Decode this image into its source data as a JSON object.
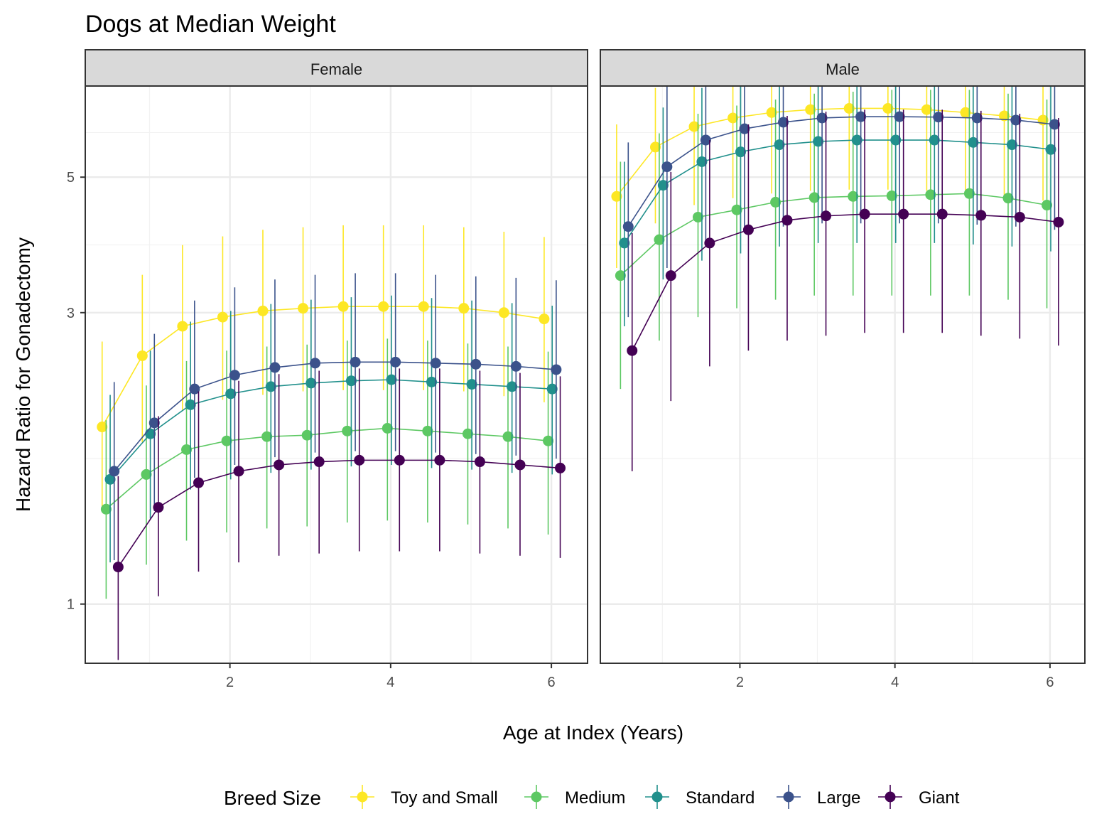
{
  "chart_data": {
    "type": "line",
    "title": "Dogs at Median Weight",
    "xlabel": "Age at Index (Years)",
    "ylabel": "Hazard Ratio for Gonadectomy",
    "y_scale": "log",
    "xlim": [
      0.2,
      6.45
    ],
    "ylim": [
      0.8,
      7.05
    ],
    "x_ticks": [
      2,
      4,
      6
    ],
    "y_ticks": [
      1,
      3,
      5
    ],
    "grid": true,
    "legend": {
      "title": "Breed Size",
      "position": "bottom"
    },
    "panels": [
      {
        "label": "Female",
        "series": [
          {
            "name": "Toy and Small",
            "color": "#FDE725",
            "x": [
              0.41,
              0.91,
              1.41,
              1.91,
              2.41,
              2.91,
              3.41,
              3.91,
              4.41,
              4.91,
              5.41,
              5.91
            ],
            "y": [
              1.95,
              2.55,
              2.85,
              2.95,
              3.02,
              3.05,
              3.07,
              3.07,
              3.07,
              3.05,
              3.0,
              2.93
            ],
            "lower": [
              1.43,
              1.84,
              2.08,
              2.16,
              2.2,
              2.23,
              2.24,
              2.24,
              2.24,
              2.23,
              2.19,
              2.14
            ],
            "upper": [
              2.69,
              3.46,
              3.87,
              4.0,
              4.1,
              4.14,
              4.17,
              4.17,
              4.17,
              4.14,
              4.07,
              3.99
            ]
          },
          {
            "name": "Medium",
            "color": "#5DC863",
            "x": [
              0.46,
              0.96,
              1.46,
              1.96,
              2.46,
              2.96,
              3.46,
              3.96,
              4.46,
              4.96,
              5.46,
              5.96
            ],
            "y": [
              1.43,
              1.63,
              1.79,
              1.85,
              1.88,
              1.89,
              1.92,
              1.94,
              1.92,
              1.9,
              1.88,
              1.85
            ],
            "lower": [
              1.02,
              1.16,
              1.27,
              1.31,
              1.33,
              1.34,
              1.36,
              1.37,
              1.36,
              1.35,
              1.33,
              1.3
            ],
            "upper": [
              2.0,
              2.28,
              2.5,
              2.6,
              2.64,
              2.66,
              2.7,
              2.72,
              2.7,
              2.67,
              2.64,
              2.59
            ]
          },
          {
            "name": "Standard",
            "color": "#21908C",
            "x": [
              0.51,
              1.01,
              1.51,
              2.01,
              2.51,
              3.01,
              3.51,
              4.01,
              4.51,
              5.01,
              5.51,
              6.01
            ],
            "y": [
              1.6,
              1.9,
              2.12,
              2.21,
              2.27,
              2.3,
              2.32,
              2.33,
              2.31,
              2.29,
              2.27,
              2.25
            ],
            "lower": [
              1.17,
              1.38,
              1.54,
              1.6,
              1.64,
              1.66,
              1.68,
              1.69,
              1.67,
              1.66,
              1.64,
              1.63
            ],
            "upper": [
              2.2,
              2.6,
              2.9,
              3.02,
              3.1,
              3.15,
              3.18,
              3.2,
              3.17,
              3.14,
              3.11,
              3.08
            ]
          },
          {
            "name": "Large",
            "color": "#3B528B",
            "x": [
              0.56,
              1.06,
              1.56,
              2.06,
              2.56,
              3.06,
              3.56,
              4.06,
              4.56,
              5.06,
              5.56,
              6.06
            ],
            "y": [
              1.65,
              1.98,
              2.25,
              2.37,
              2.44,
              2.48,
              2.49,
              2.49,
              2.48,
              2.47,
              2.45,
              2.42
            ],
            "lower": [
              1.18,
              1.42,
              1.61,
              1.69,
              1.74,
              1.77,
              1.78,
              1.78,
              1.77,
              1.76,
              1.75,
              1.73
            ],
            "upper": [
              2.31,
              2.77,
              3.14,
              3.3,
              3.4,
              3.46,
              3.48,
              3.48,
              3.46,
              3.44,
              3.42,
              3.39
            ]
          },
          {
            "name": "Giant",
            "color": "#440154",
            "x": [
              0.61,
              1.11,
              1.61,
              2.11,
              2.61,
              3.11,
              3.61,
              4.11,
              4.61,
              5.11,
              5.61,
              6.11
            ],
            "y": [
              1.15,
              1.44,
              1.58,
              1.65,
              1.69,
              1.71,
              1.72,
              1.72,
              1.72,
              1.71,
              1.69,
              1.67
            ],
            "lower": [
              0.81,
              1.03,
              1.13,
              1.17,
              1.2,
              1.21,
              1.22,
              1.22,
              1.22,
              1.21,
              1.2,
              1.19
            ],
            "upper": [
              1.62,
              2.03,
              2.23,
              2.32,
              2.38,
              2.41,
              2.43,
              2.43,
              2.43,
              2.41,
              2.39,
              2.36
            ]
          }
        ]
      },
      {
        "label": "Male",
        "series": [
          {
            "name": "Toy and Small",
            "color": "#FDE725",
            "x": [
              0.41,
              0.91,
              1.41,
              1.91,
              2.41,
              2.91,
              3.41,
              3.91,
              4.41,
              4.91,
              5.41,
              5.91
            ],
            "y": [
              4.65,
              5.6,
              6.05,
              6.25,
              6.38,
              6.45,
              6.48,
              6.48,
              6.45,
              6.38,
              6.3,
              6.2
            ],
            "lower": [
              3.55,
              4.2,
              4.5,
              4.62,
              4.7,
              4.75,
              4.77,
              4.77,
              4.75,
              4.7,
              4.65,
              4.58
            ],
            "upper": [
              6.1,
              7.0,
              7.3,
              7.35,
              7.4,
              7.42,
              7.43,
              7.43,
              7.42,
              7.4,
              7.38,
              7.35
            ]
          },
          {
            "name": "Medium",
            "color": "#5DC863",
            "x": [
              0.46,
              0.96,
              1.46,
              1.96,
              2.46,
              2.96,
              3.46,
              3.96,
              4.46,
              4.96,
              5.46,
              5.96
            ],
            "y": [
              3.45,
              3.95,
              4.3,
              4.42,
              4.55,
              4.63,
              4.65,
              4.66,
              4.68,
              4.7,
              4.62,
              4.5
            ],
            "lower": [
              2.25,
              2.7,
              2.95,
              3.05,
              3.15,
              3.2,
              3.2,
              3.2,
              3.2,
              3.2,
              3.15,
              3.05
            ],
            "upper": [
              5.3,
              5.9,
              6.35,
              6.55,
              6.7,
              6.85,
              6.9,
              6.95,
              6.95,
              6.95,
              6.85,
              6.7
            ]
          },
          {
            "name": "Standard",
            "color": "#21908C",
            "x": [
              0.51,
              1.01,
              1.51,
              2.01,
              2.51,
              3.01,
              3.51,
              4.01,
              4.51,
              5.01,
              5.51,
              6.01
            ],
            "y": [
              3.9,
              4.85,
              5.3,
              5.5,
              5.65,
              5.72,
              5.75,
              5.75,
              5.75,
              5.7,
              5.65,
              5.55
            ],
            "lower": [
              2.85,
              3.4,
              3.65,
              3.75,
              3.85,
              3.9,
              3.9,
              3.9,
              3.9,
              3.88,
              3.85,
              3.78
            ],
            "upper": [
              5.3,
              6.5,
              7.0,
              7.2,
              7.35,
              7.4,
              7.45,
              7.45,
              7.45,
              7.42,
              7.38,
              7.3
            ]
          },
          {
            "name": "Large",
            "color": "#3B528B",
            "x": [
              0.56,
              1.06,
              1.56,
              2.06,
              2.56,
              3.06,
              3.56,
              4.06,
              4.56,
              5.06,
              5.56,
              6.06
            ],
            "y": [
              4.15,
              5.2,
              5.75,
              6.0,
              6.15,
              6.25,
              6.28,
              6.28,
              6.27,
              6.25,
              6.2,
              6.1
            ],
            "lower": [
              2.95,
              3.55,
              3.9,
              4.05,
              4.15,
              4.2,
              4.2,
              4.2,
              4.2,
              4.18,
              4.15,
              4.1
            ],
            "upper": [
              5.7,
              7.1,
              7.6,
              7.8,
              7.9,
              7.95,
              8.0,
              8.0,
              8.0,
              7.98,
              7.92,
              7.85
            ]
          },
          {
            "name": "Giant",
            "color": "#440154",
            "x": [
              0.61,
              1.11,
              1.61,
              2.11,
              2.61,
              3.11,
              3.61,
              4.11,
              4.61,
              5.11,
              5.61,
              6.11
            ],
            "y": [
              2.6,
              3.45,
              3.9,
              4.1,
              4.25,
              4.32,
              4.35,
              4.35,
              4.35,
              4.33,
              4.3,
              4.22
            ],
            "lower": [
              1.65,
              2.15,
              2.45,
              2.6,
              2.7,
              2.75,
              2.78,
              2.78,
              2.78,
              2.75,
              2.72,
              2.65
            ],
            "upper": [
              4.05,
              5.1,
              5.75,
              6.1,
              6.3,
              6.4,
              6.45,
              6.45,
              6.45,
              6.42,
              6.35,
              6.25
            ]
          }
        ]
      }
    ]
  }
}
